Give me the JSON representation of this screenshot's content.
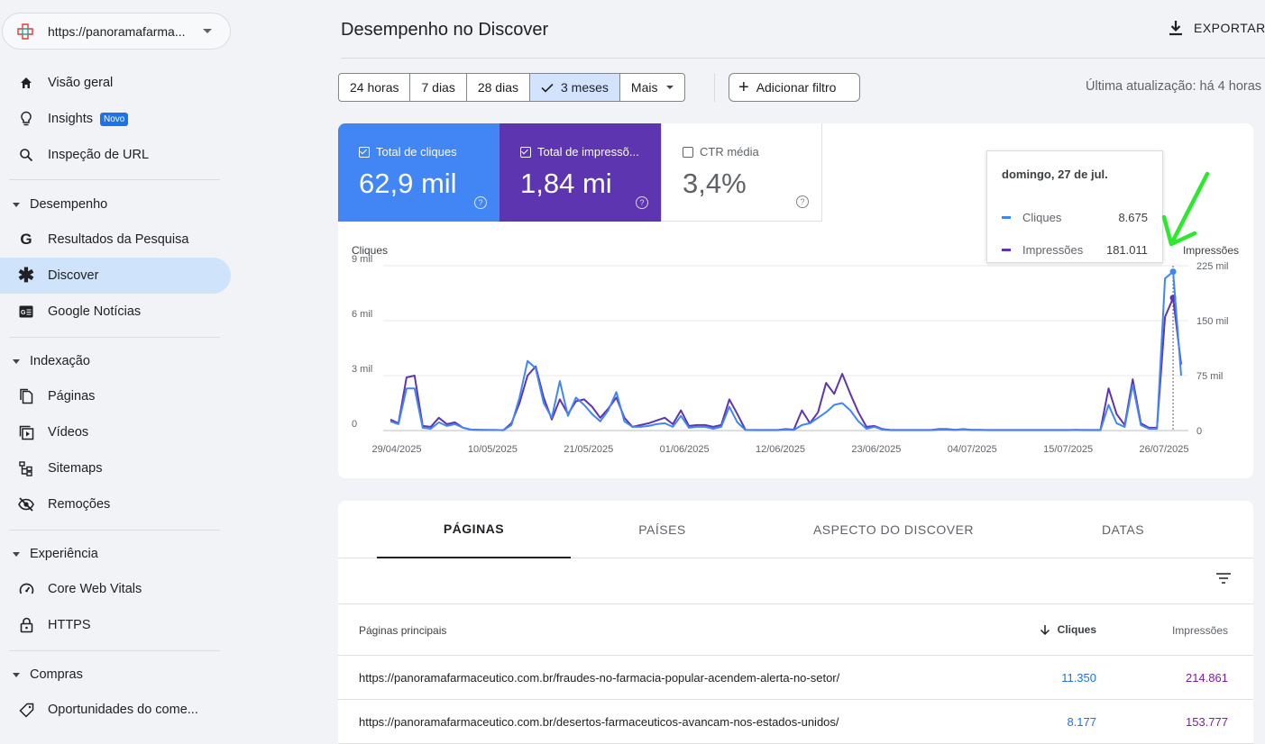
{
  "property": {
    "url": "https://panoramafarma..."
  },
  "sidebar": {
    "overview": "Visão geral",
    "insights": "Insights",
    "insights_badge": "Novo",
    "url_inspection": "Inspeção de URL",
    "sections": {
      "performance": "Desempenho",
      "indexing": "Indexação",
      "experience": "Experiência",
      "shopping": "Compras"
    },
    "items": {
      "search_results": "Resultados da Pesquisa",
      "discover": "Discover",
      "google_news": "Google Notícias",
      "pages": "Páginas",
      "videos": "Vídeos",
      "sitemaps": "Sitemaps",
      "removals": "Remoções",
      "core_web_vitals": "Core Web Vitals",
      "https": "HTTPS",
      "merchant": "Oportunidades do come..."
    }
  },
  "header": {
    "title": "Desempenho no Discover",
    "export": "EXPORTAR"
  },
  "filters": {
    "ranges": [
      "24 horas",
      "7 dias",
      "28 dias",
      "3 meses",
      "Mais"
    ],
    "selected": "3 meses",
    "add_filter": "Adicionar filtro",
    "last_update": "Última atualização: há 4 horas"
  },
  "metrics": {
    "clicks": {
      "label": "Total de cliques",
      "value": "62,9 mil",
      "color": "#4285f4"
    },
    "impressions": {
      "label": "Total de impressõ...",
      "value": "1,84 mi",
      "color": "#5e35b1"
    },
    "ctr": {
      "label": "CTR média",
      "value": "3,4%"
    }
  },
  "tooltip": {
    "date": "domingo, 27 de jul.",
    "clicks_label": "Cliques",
    "clicks_value": "8.675",
    "impr_label": "Impressões",
    "impr_value": "181.011"
  },
  "chart_data": {
    "type": "line",
    "left_axis_title": "Cliques",
    "right_axis_title": "Impressões",
    "left_ticks": [
      "0",
      "3 mil",
      "6 mil",
      "9 mil"
    ],
    "right_ticks": [
      "0",
      "75 mil",
      "150 mil",
      "225 mil"
    ],
    "left_ylim": [
      0,
      9000
    ],
    "right_ylim": [
      0,
      225000
    ],
    "x_tick_labels": [
      "29/04/2025",
      "10/05/2025",
      "21/05/2025",
      "01/06/2025",
      "12/06/2025",
      "23/06/2025",
      "04/07/2025",
      "15/07/2025",
      "26/07/2025"
    ],
    "series": [
      {
        "name": "Cliques",
        "color": "#4285f4",
        "axis": "left",
        "values": [
          500,
          350,
          2300,
          2300,
          150,
          100,
          450,
          250,
          350,
          150,
          50,
          40,
          30,
          30,
          20,
          300,
          1800,
          3800,
          3400,
          1500,
          700,
          2700,
          800,
          1800,
          1400,
          900,
          500,
          1100,
          2100,
          500,
          200,
          200,
          250,
          350,
          400,
          200,
          800,
          150,
          200,
          200,
          100,
          200,
          1300,
          450,
          30,
          20,
          20,
          20,
          20,
          50,
          30,
          300,
          400,
          700,
          1000,
          1400,
          1500,
          1100,
          500,
          100,
          200,
          50,
          20,
          20,
          20,
          20,
          20,
          20,
          50,
          50,
          30,
          60,
          30,
          30,
          20,
          20,
          20,
          20,
          20,
          20,
          20,
          20,
          20,
          20,
          20,
          30,
          20,
          20,
          20,
          1400,
          400,
          200,
          2500,
          300,
          100,
          100,
          8300,
          8675,
          3000
        ]
      },
      {
        "name": "Impressões",
        "color": "#5e35b1",
        "axis": "left",
        "values": [
          600,
          400,
          2900,
          3000,
          250,
          200,
          700,
          350,
          450,
          150,
          50,
          40,
          30,
          30,
          20,
          400,
          1500,
          3000,
          3500,
          1800,
          600,
          1700,
          900,
          1600,
          1700,
          1300,
          700,
          1200,
          1800,
          700,
          200,
          300,
          400,
          550,
          700,
          350,
          1100,
          250,
          300,
          300,
          200,
          300,
          1700,
          900,
          40,
          30,
          30,
          30,
          30,
          80,
          50,
          1100,
          400,
          1000,
          2600,
          2000,
          3100,
          2000,
          1000,
          200,
          250,
          80,
          30,
          30,
          30,
          30,
          30,
          30,
          80,
          80,
          40,
          80,
          40,
          40,
          30,
          30,
          30,
          30,
          30,
          30,
          30,
          30,
          30,
          30,
          30,
          40,
          30,
          30,
          30,
          2300,
          900,
          300,
          2800,
          400,
          150,
          150,
          6200,
          7240,
          3600
        ]
      }
    ]
  },
  "table": {
    "tabs": [
      "PÁGINAS",
      "PAÍSES",
      "ASPECTO DO DISCOVER",
      "DATAS"
    ],
    "columns": {
      "page": "Páginas principais",
      "clicks": "Cliques",
      "impressions": "Impressões"
    },
    "rows": [
      {
        "url": "https://panoramafarmaceutico.com.br/fraudes-no-farmacia-popular-acendem-alerta-no-setor/",
        "clicks": "11.350",
        "impressions": "214.861"
      },
      {
        "url": "https://panoramafarmaceutico.com.br/desertos-farmaceuticos-avancam-nos-estados-unidos/",
        "clicks": "8.177",
        "impressions": "153.777"
      }
    ]
  }
}
